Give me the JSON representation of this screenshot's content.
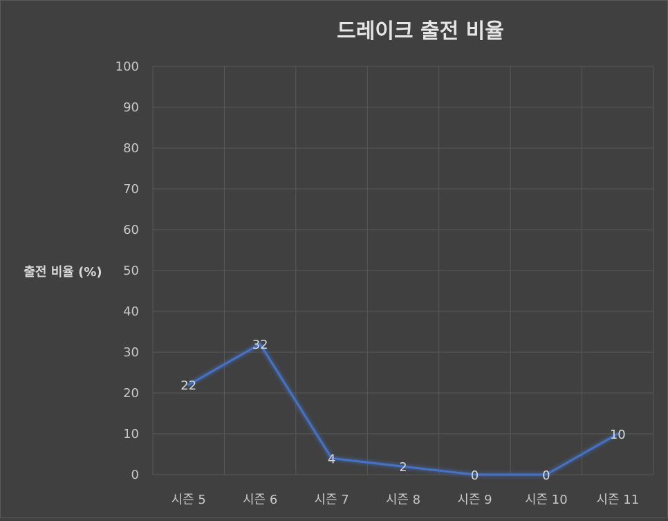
{
  "chart_data": {
    "type": "line",
    "title": "드레이크 출전 비율",
    "xlabel": "",
    "ylabel": "출전 비율 (%)",
    "categories": [
      "시즌 5",
      "시즌 6",
      "시즌 7",
      "시즌 8",
      "시즌 9",
      "시즌 10",
      "시즌 11"
    ],
    "values": [
      22,
      32,
      4,
      2,
      0,
      0,
      10
    ],
    "ylim": [
      0,
      100
    ],
    "yticks": [
      0,
      10,
      20,
      30,
      40,
      50,
      60,
      70,
      80,
      90,
      100
    ],
    "grid": true,
    "legend": "none",
    "data_labels": true,
    "colors": {
      "background": "#404040",
      "line": "#4472c4",
      "grid": "#595959",
      "text": "#c8c8c8"
    }
  }
}
